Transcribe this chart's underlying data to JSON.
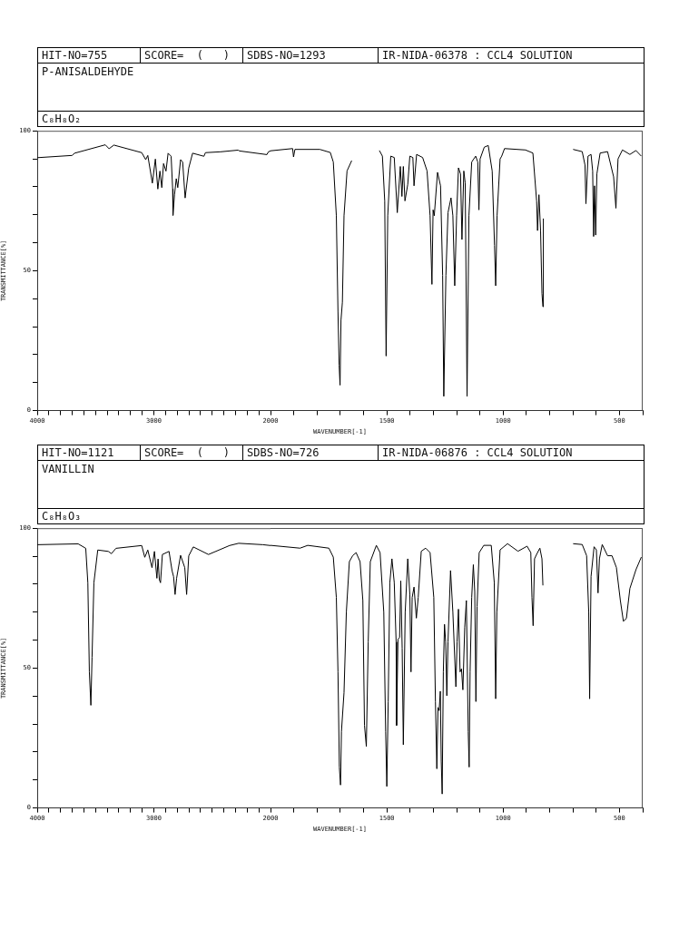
{
  "chart_data": [
    {
      "type": "line",
      "title": "P-ANISALDEHYDE",
      "subtitle": "C₈H₈O₂",
      "annotations": [
        "HIT-NO=755",
        "SCORE=  (   )",
        "SDBS-NO=1293",
        "IR-NIDA-06378 : CCL4 SOLUTION"
      ],
      "xlabel": "WAVENUMBER[-1]",
      "ylabel": "TRANSMITTANCE[%]",
      "legend": false,
      "grid": false,
      "marker": "none",
      "line_style": "solid",
      "xlim": [
        4000,
        2000
      ],
      "ylim": [
        0,
        100
      ],
      "xticks": [
        4000,
        {
          "value": 3900,
          "label": null
        },
        {
          "value": 3800,
          "label": null
        },
        {
          "value": 3700,
          "label": null
        },
        {
          "value": 3600,
          "label": null
        },
        {
          "value": 3500,
          "label": null
        },
        {
          "value": 3400,
          "label": null
        },
        {
          "value": 3300,
          "label": null
        },
        {
          "value": 3200,
          "label": null
        },
        {
          "value": 3100,
          "label": null
        },
        3000,
        {
          "value": 2900,
          "label": null
        },
        {
          "value": 2800,
          "label": null
        },
        {
          "value": 2700,
          "label": null
        },
        {
          "value": 2600,
          "label": null
        },
        {
          "value": 2500,
          "label": null
        },
        {
          "value": 2400,
          "label": null
        },
        {
          "value": 2300,
          "label": null
        },
        {
          "value": 2200,
          "label": null
        },
        {
          "value": 2100,
          "label": null
        },
        2000
      ],
      "yticks": [
        0,
        {
          "value": 10,
          "label": null
        },
        {
          "value": 20,
          "label": null
        },
        {
          "value": 30,
          "label": null
        },
        {
          "value": 40,
          "label": null
        },
        50,
        {
          "value": 60,
          "label": null
        },
        {
          "value": 70,
          "label": null
        },
        {
          "value": 80,
          "label": null
        },
        {
          "value": 90,
          "label": null
        },
        100
      ],
      "series": [
        {
          "color": "#000000",
          "x": [
            4000,
            3701,
            3680,
            3416,
            3384,
            3343,
            3104,
            3070,
            3052,
            3013,
            2987,
            2966,
            2948,
            2932,
            2917,
            2896,
            2878,
            2852,
            2839,
            2836,
            2823,
            2808,
            2795,
            2771,
            2753,
            2732,
            2701,
            2668,
            2571,
            2558,
            2429,
            2278,
            2265,
            2031,
            2018,
            2000
          ],
          "values": [
            90.4,
            91.2,
            92,
            95,
            93.6,
            94.9,
            92.2,
            89.7,
            91.2,
            81.3,
            89.9,
            79.2,
            85.6,
            79.7,
            88.3,
            85.6,
            92,
            90.9,
            79.2,
            69.8,
            77.1,
            82.9,
            79.7,
            89.7,
            88.8,
            76,
            86.7,
            92,
            90.9,
            92.2,
            92.5,
            93.1,
            92.8,
            91.5,
            92.5,
            92.8
          ]
        }
      ]
    },
    {
      "type": "line",
      "tick_labels": "x",
      "legend": false,
      "grid": false,
      "marker": "none",
      "line_style": "solid",
      "xlim": [
        2000,
        400
      ],
      "ylim": [
        0,
        100
      ],
      "xticks": [
        {
          "value": 1900,
          "label": null
        },
        {
          "value": 1800,
          "label": null
        },
        {
          "value": 1700,
          "label": null
        },
        {
          "value": 1600,
          "label": null
        },
        1500,
        {
          "value": 1400,
          "label": null
        },
        {
          "value": 1300,
          "label": null
        },
        {
          "value": 1200,
          "label": null
        },
        {
          "value": 1100,
          "label": null
        },
        1000,
        {
          "value": 900,
          "label": null
        },
        {
          "value": 800,
          "label": null
        },
        {
          "value": 700,
          "label": null
        },
        {
          "value": 600,
          "label": null
        },
        500,
        {
          "value": 400,
          "label": null
        }
      ],
      "series": [
        {
          "color": "#000000",
          "x": [
            2000,
            1905,
            1901,
            1895,
            1788,
            1743,
            1730,
            1717,
            1710,
            1705,
            1701,
            1697,
            1691,
            1684,
            1671,
            1651,
            1600,
            1532,
            1519,
            1509,
            1503,
            1496,
            1483,
            1468,
            1455,
            1442,
            1435,
            1429,
            1422,
            1410,
            1401,
            1388,
            1383,
            1372,
            1346,
            1327,
            1314,
            1306,
            1301,
            1296,
            1282,
            1269,
            1260,
            1255,
            1246,
            1237,
            1224,
            1216,
            1208,
            1200,
            1192,
            1183,
            1177,
            1169,
            1163,
            1155,
            1147,
            1135,
            1118,
            1109,
            1104,
            1099,
            1081,
            1064,
            1047,
            1037,
            1032,
            1026,
            1013,
            1006,
            994,
            904,
            872,
            856,
            852,
            846,
            839,
            833,
            829,
            827,
            760,
            699,
            660,
            648,
            644,
            635,
            622,
            615,
            611,
            607,
            602,
            597,
            583,
            551,
            525,
            515,
            506,
            487,
            455,
            429,
            406
          ],
          "values": [
            92.8,
            93.6,
            90.6,
            93.3,
            93.3,
            92.2,
            88.8,
            69.6,
            35.5,
            16.3,
            9.1,
            32.3,
            38.7,
            69.6,
            85.6,
            89.3,
            null,
            92.9,
            90.9,
            74.9,
            19.5,
            69.6,
            90.9,
            90.4,
            70.7,
            87.2,
            76.5,
            87.2,
            74.9,
            80.8,
            90.9,
            90.4,
            80.3,
            91.5,
            90.4,
            85.6,
            69.6,
            45.1,
            71.7,
            69.6,
            85.1,
            80.3,
            48.3,
            5.1,
            48.3,
            70.7,
            76,
            69.6,
            44.6,
            69.6,
            86.7,
            84.5,
            61.1,
            85.6,
            81.3,
            5.1,
            69.6,
            88.8,
            90.9,
            88.8,
            71.7,
            89.9,
            94.1,
            94.7,
            85.6,
            59,
            44.6,
            69.6,
            89.9,
            90.9,
            93.6,
            93.1,
            92,
            74.9,
            64.3,
            77.1,
            64.3,
            41.9,
            37.1,
            68.6,
            null,
            93.3,
            92.5,
            87.7,
            73.9,
            90.9,
            91.5,
            85.6,
            62.2,
            80.3,
            62.7,
            84.5,
            92,
            92.5,
            83.5,
            72.3,
            89.9,
            93.1,
            91.5,
            92.9,
            90.9
          ]
        }
      ]
    },
    {
      "type": "line",
      "title": "VANILLIN",
      "subtitle": "C₈H₈O₃",
      "annotations": [
        "HIT-NO=1121",
        "SCORE=  (   )",
        "SDBS-NO=726",
        "IR-NIDA-06876 : CCL4 SOLUTION"
      ],
      "xlabel": "WAVENUMBER[-1]",
      "ylabel": "TRANSMITTANCE[%]",
      "legend": false,
      "grid": false,
      "marker": "none",
      "line_style": "solid",
      "xlim": [
        4000,
        2000
      ],
      "ylim": [
        0,
        100
      ],
      "xticks": [
        4000,
        {
          "value": 3900,
          "label": null
        },
        {
          "value": 3800,
          "label": null
        },
        {
          "value": 3700,
          "label": null
        },
        {
          "value": 3600,
          "label": null
        },
        {
          "value": 3500,
          "label": null
        },
        {
          "value": 3400,
          "label": null
        },
        {
          "value": 3300,
          "label": null
        },
        {
          "value": 3200,
          "label": null
        },
        {
          "value": 3100,
          "label": null
        },
        3000,
        {
          "value": 2900,
          "label": null
        },
        {
          "value": 2800,
          "label": null
        },
        {
          "value": 2700,
          "label": null
        },
        {
          "value": 2600,
          "label": null
        },
        {
          "value": 2500,
          "label": null
        },
        {
          "value": 2400,
          "label": null
        },
        {
          "value": 2300,
          "label": null
        },
        {
          "value": 2200,
          "label": null
        },
        {
          "value": 2100,
          "label": null
        },
        2000
      ],
      "yticks": [
        0,
        {
          "value": 10,
          "label": null
        },
        {
          "value": 20,
          "label": null
        },
        {
          "value": 30,
          "label": null
        },
        {
          "value": 40,
          "label": null
        },
        50,
        {
          "value": 60,
          "label": null
        },
        {
          "value": 70,
          "label": null
        },
        {
          "value": 80,
          "label": null
        },
        {
          "value": 90,
          "label": null
        },
        100
      ],
      "series": [
        {
          "color": "#000000",
          "x": [
            4000,
            3649,
            3584,
            3566,
            3553,
            3540,
            3530,
            3514,
            3481,
            3390,
            3364,
            3325,
            3104,
            3078,
            3052,
            3016,
            2995,
            2974,
            2964,
            2953,
            2943,
            2927,
            2870,
            2844,
            2831,
            2818,
            2805,
            2771,
            2735,
            2719,
            2701,
            2662,
            2532,
            2351,
            2273,
            2065,
            2000
          ],
          "values": [
            94.1,
            94.4,
            92.8,
            80.5,
            48.6,
            36.7,
            53.9,
            80.5,
            92.2,
            91.7,
            90.9,
            92.8,
            93.8,
            89.6,
            92.2,
            85.9,
            91.7,
            82.1,
            89,
            81.6,
            80.5,
            90.6,
            91.7,
            84.8,
            82.7,
            76.3,
            82.1,
            90.3,
            85.9,
            76.3,
            90.1,
            93.3,
            90.6,
            93.8,
            94.6,
            94.1,
            93.8
          ]
        }
      ]
    },
    {
      "type": "line",
      "tick_labels": "x",
      "legend": false,
      "grid": false,
      "marker": "none",
      "line_style": "solid",
      "xlim": [
        2000,
        400
      ],
      "ylim": [
        0,
        100
      ],
      "xticks": [
        {
          "value": 1900,
          "label": null
        },
        {
          "value": 1800,
          "label": null
        },
        {
          "value": 1700,
          "label": null
        },
        {
          "value": 1600,
          "label": null
        },
        1500,
        {
          "value": 1400,
          "label": null
        },
        {
          "value": 1300,
          "label": null
        },
        {
          "value": 1200,
          "label": null
        },
        {
          "value": 1100,
          "label": null
        },
        1000,
        {
          "value": 900,
          "label": null
        },
        {
          "value": 800,
          "label": null
        },
        {
          "value": 700,
          "label": null
        },
        {
          "value": 600,
          "label": null
        },
        500,
        {
          "value": 400,
          "label": null
        }
      ],
      "series": [
        {
          "color": "#000000",
          "x": [
            2000,
            1873,
            1840,
            1749,
            1730,
            1717,
            1710,
            1704,
            1699,
            1695,
            1684,
            1674,
            1661,
            1647,
            1632,
            1615,
            1603,
            1596,
            1588,
            1580,
            1571,
            1545,
            1529,
            1513,
            1505,
            1500,
            1494,
            1487,
            1478,
            1468,
            1460,
            1458,
            1452,
            1445,
            1440,
            1434,
            1429,
            1421,
            1410,
            1401,
            1396,
            1391,
            1383,
            1373,
            1365,
            1352,
            1333,
            1314,
            1298,
            1291,
            1285,
            1280,
            1275,
            1270,
            1266,
            1262,
            1257,
            1252,
            1247,
            1242,
            1237,
            1226,
            1216,
            1203,
            1198,
            1192,
            1185,
            1179,
            1173,
            1165,
            1158,
            1150,
            1146,
            1142,
            1135,
            1128,
            1122,
            1117,
            1112,
            1103,
            1083,
            1051,
            1038,
            1032,
            1027,
            1013,
            981,
            936,
            897,
            881,
            876,
            871,
            865,
            856,
            842,
            833,
            829,
            760,
            699,
            660,
            641,
            632,
            628,
            622,
            609,
            599,
            592,
            586,
            574,
            551,
            532,
            513,
            496,
            483,
            470,
            455,
            429,
            406
          ],
          "values": [
            93.8,
            92.8,
            93.8,
            92.8,
            89.6,
            75.2,
            48.6,
            14.6,
            8.2,
            27.3,
            41.2,
            69.9,
            88,
            90.1,
            91.2,
            88,
            74.1,
            29.5,
            22,
            59.3,
            88,
            93.8,
            91.2,
            69.9,
            27.3,
            7.7,
            38,
            80.5,
            89,
            80.5,
            59.3,
            29.5,
            60.3,
            60.9,
            81.1,
            57.1,
            22.6,
            69.9,
            89,
            76.3,
            48.6,
            75.2,
            78.9,
            67.8,
            75.2,
            91.7,
            92.8,
            91.2,
            75.2,
            38,
            14,
            35.9,
            34.8,
            41.7,
            16.7,
            5,
            48.6,
            65.6,
            59.3,
            40.1,
            59.3,
            84.8,
            69.9,
            43.3,
            59.3,
            71,
            48.6,
            49.7,
            42.2,
            64.6,
            74.1,
            27.3,
            14.6,
            48.6,
            75.2,
            86.9,
            77.3,
            38,
            72,
            91.2,
            93.8,
            93.8,
            80.5,
            39,
            69.9,
            92.2,
            94.4,
            91.7,
            93.5,
            91.2,
            75.2,
            65.1,
            89,
            90.6,
            92.8,
            89,
            79.5,
            null,
            94.4,
            94.1,
            90.1,
            69.9,
            39,
            82.7,
            93.3,
            92.2,
            76.8,
            89,
            94.1,
            90.1,
            90.1,
            85.9,
            74.1,
            66.7,
            67.7,
            78.4,
            85.1,
            89.6
          ]
        }
      ]
    }
  ]
}
